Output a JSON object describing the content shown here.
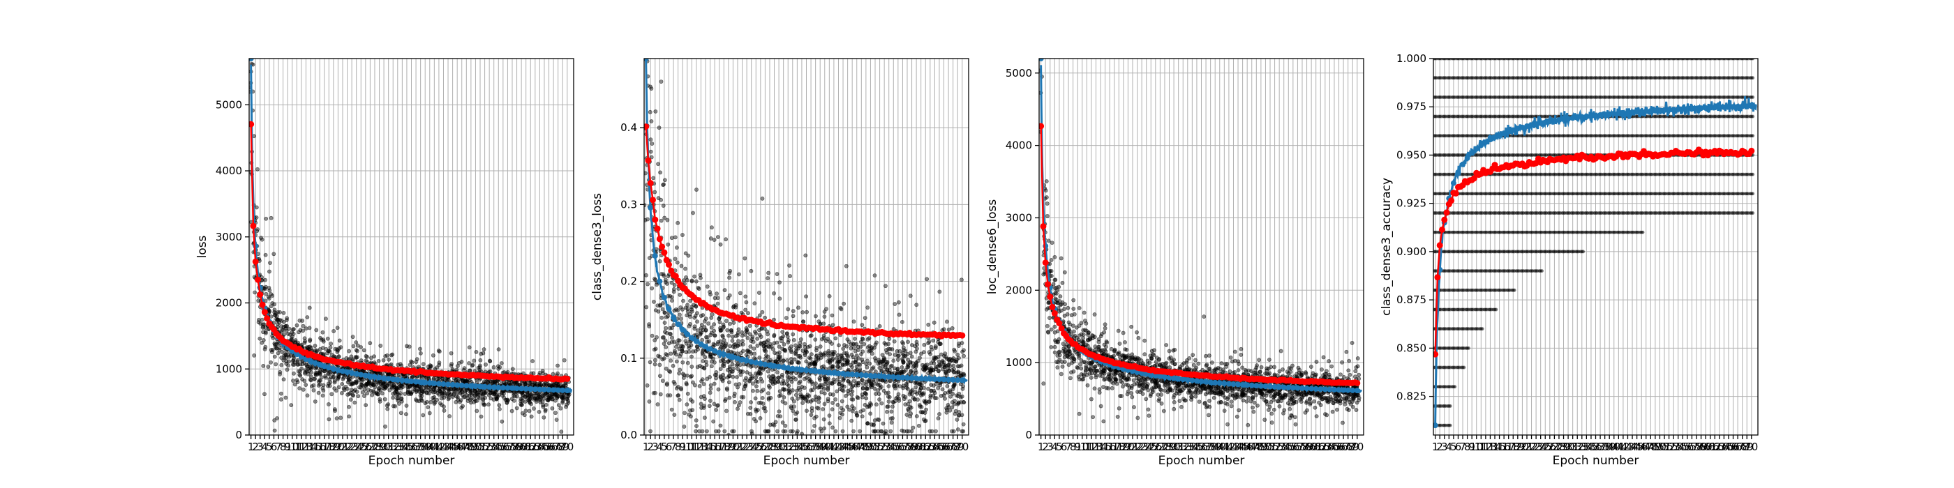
{
  "figure": {
    "background": "#ffffff"
  },
  "colors": {
    "train": "#1f77b4",
    "validation": "#ff0000",
    "batch": "#000000"
  },
  "chart_data": [
    {
      "type": "line",
      "xlabel": "Epoch number",
      "ylabel": "loss",
      "epochs": 70,
      "ylim": [
        0,
        5700
      ],
      "yticks": [
        0,
        1000,
        2000,
        3000,
        4000,
        5000
      ],
      "ytick_labels": [
        "0",
        "1000",
        "2000",
        "3000",
        "4000",
        "5000"
      ],
      "series": [
        {
          "role": "train",
          "start": 5700,
          "end": 330,
          "decay": 3.5,
          "power": 0.5
        },
        {
          "role": "validation",
          "start": 4700,
          "end": 560,
          "decay": 3.0,
          "power": 0.5
        }
      ],
      "batch_spread": 0.3
    },
    {
      "type": "line",
      "xlabel": "Epoch number",
      "ylabel": "class_dense3_loss",
      "epochs": 70,
      "ylim": [
        0,
        0.49
      ],
      "yticks": [
        0.0,
        0.1,
        0.2,
        0.3,
        0.4
      ],
      "ytick_labels": [
        "0.0",
        "0.1",
        "0.2",
        "0.3",
        "0.4"
      ],
      "series": [
        {
          "role": "train",
          "start": 0.49,
          "end": 0.045,
          "decay": 1.6,
          "power": 0.6
        },
        {
          "role": "validation",
          "start": 0.4,
          "end": 0.118,
          "decay": 0.35,
          "power": 1.0
        }
      ],
      "batch_spread": 0.65
    },
    {
      "type": "line",
      "xlabel": "Epoch number",
      "ylabel": "loc_dense6_loss",
      "epochs": 70,
      "ylim": [
        0,
        5200
      ],
      "yticks": [
        0,
        1000,
        2000,
        3000,
        4000,
        5000
      ],
      "ytick_labels": [
        "0",
        "1000",
        "2000",
        "3000",
        "4000",
        "5000"
      ],
      "series": [
        {
          "role": "train",
          "start": 5200,
          "end": 300,
          "decay": 3.5,
          "power": 0.5
        },
        {
          "role": "validation",
          "start": 4300,
          "end": 450,
          "decay": 3.0,
          "power": 0.5
        }
      ],
      "batch_spread": 0.3
    },
    {
      "type": "line",
      "xlabel": "Epoch number",
      "ylabel": "class_dense3_accuracy",
      "epochs": 70,
      "ylim": [
        0.805,
        1.0
      ],
      "yticks": [
        0.825,
        0.85,
        0.875,
        0.9,
        0.925,
        0.95,
        0.975,
        1.0
      ],
      "ytick_labels": [
        "0.825",
        "0.850",
        "0.875",
        "0.900",
        "0.925",
        "0.950",
        "0.975",
        "1.000"
      ],
      "series": [
        {
          "role": "train",
          "start": 0.81,
          "end": 0.985,
          "decay": 1.8,
          "power": 0.6
        },
        {
          "role": "validation",
          "start": 0.848,
          "end": 0.957,
          "decay": 2.2,
          "power": 0.6
        }
      ],
      "batch_spread": 0
    }
  ]
}
